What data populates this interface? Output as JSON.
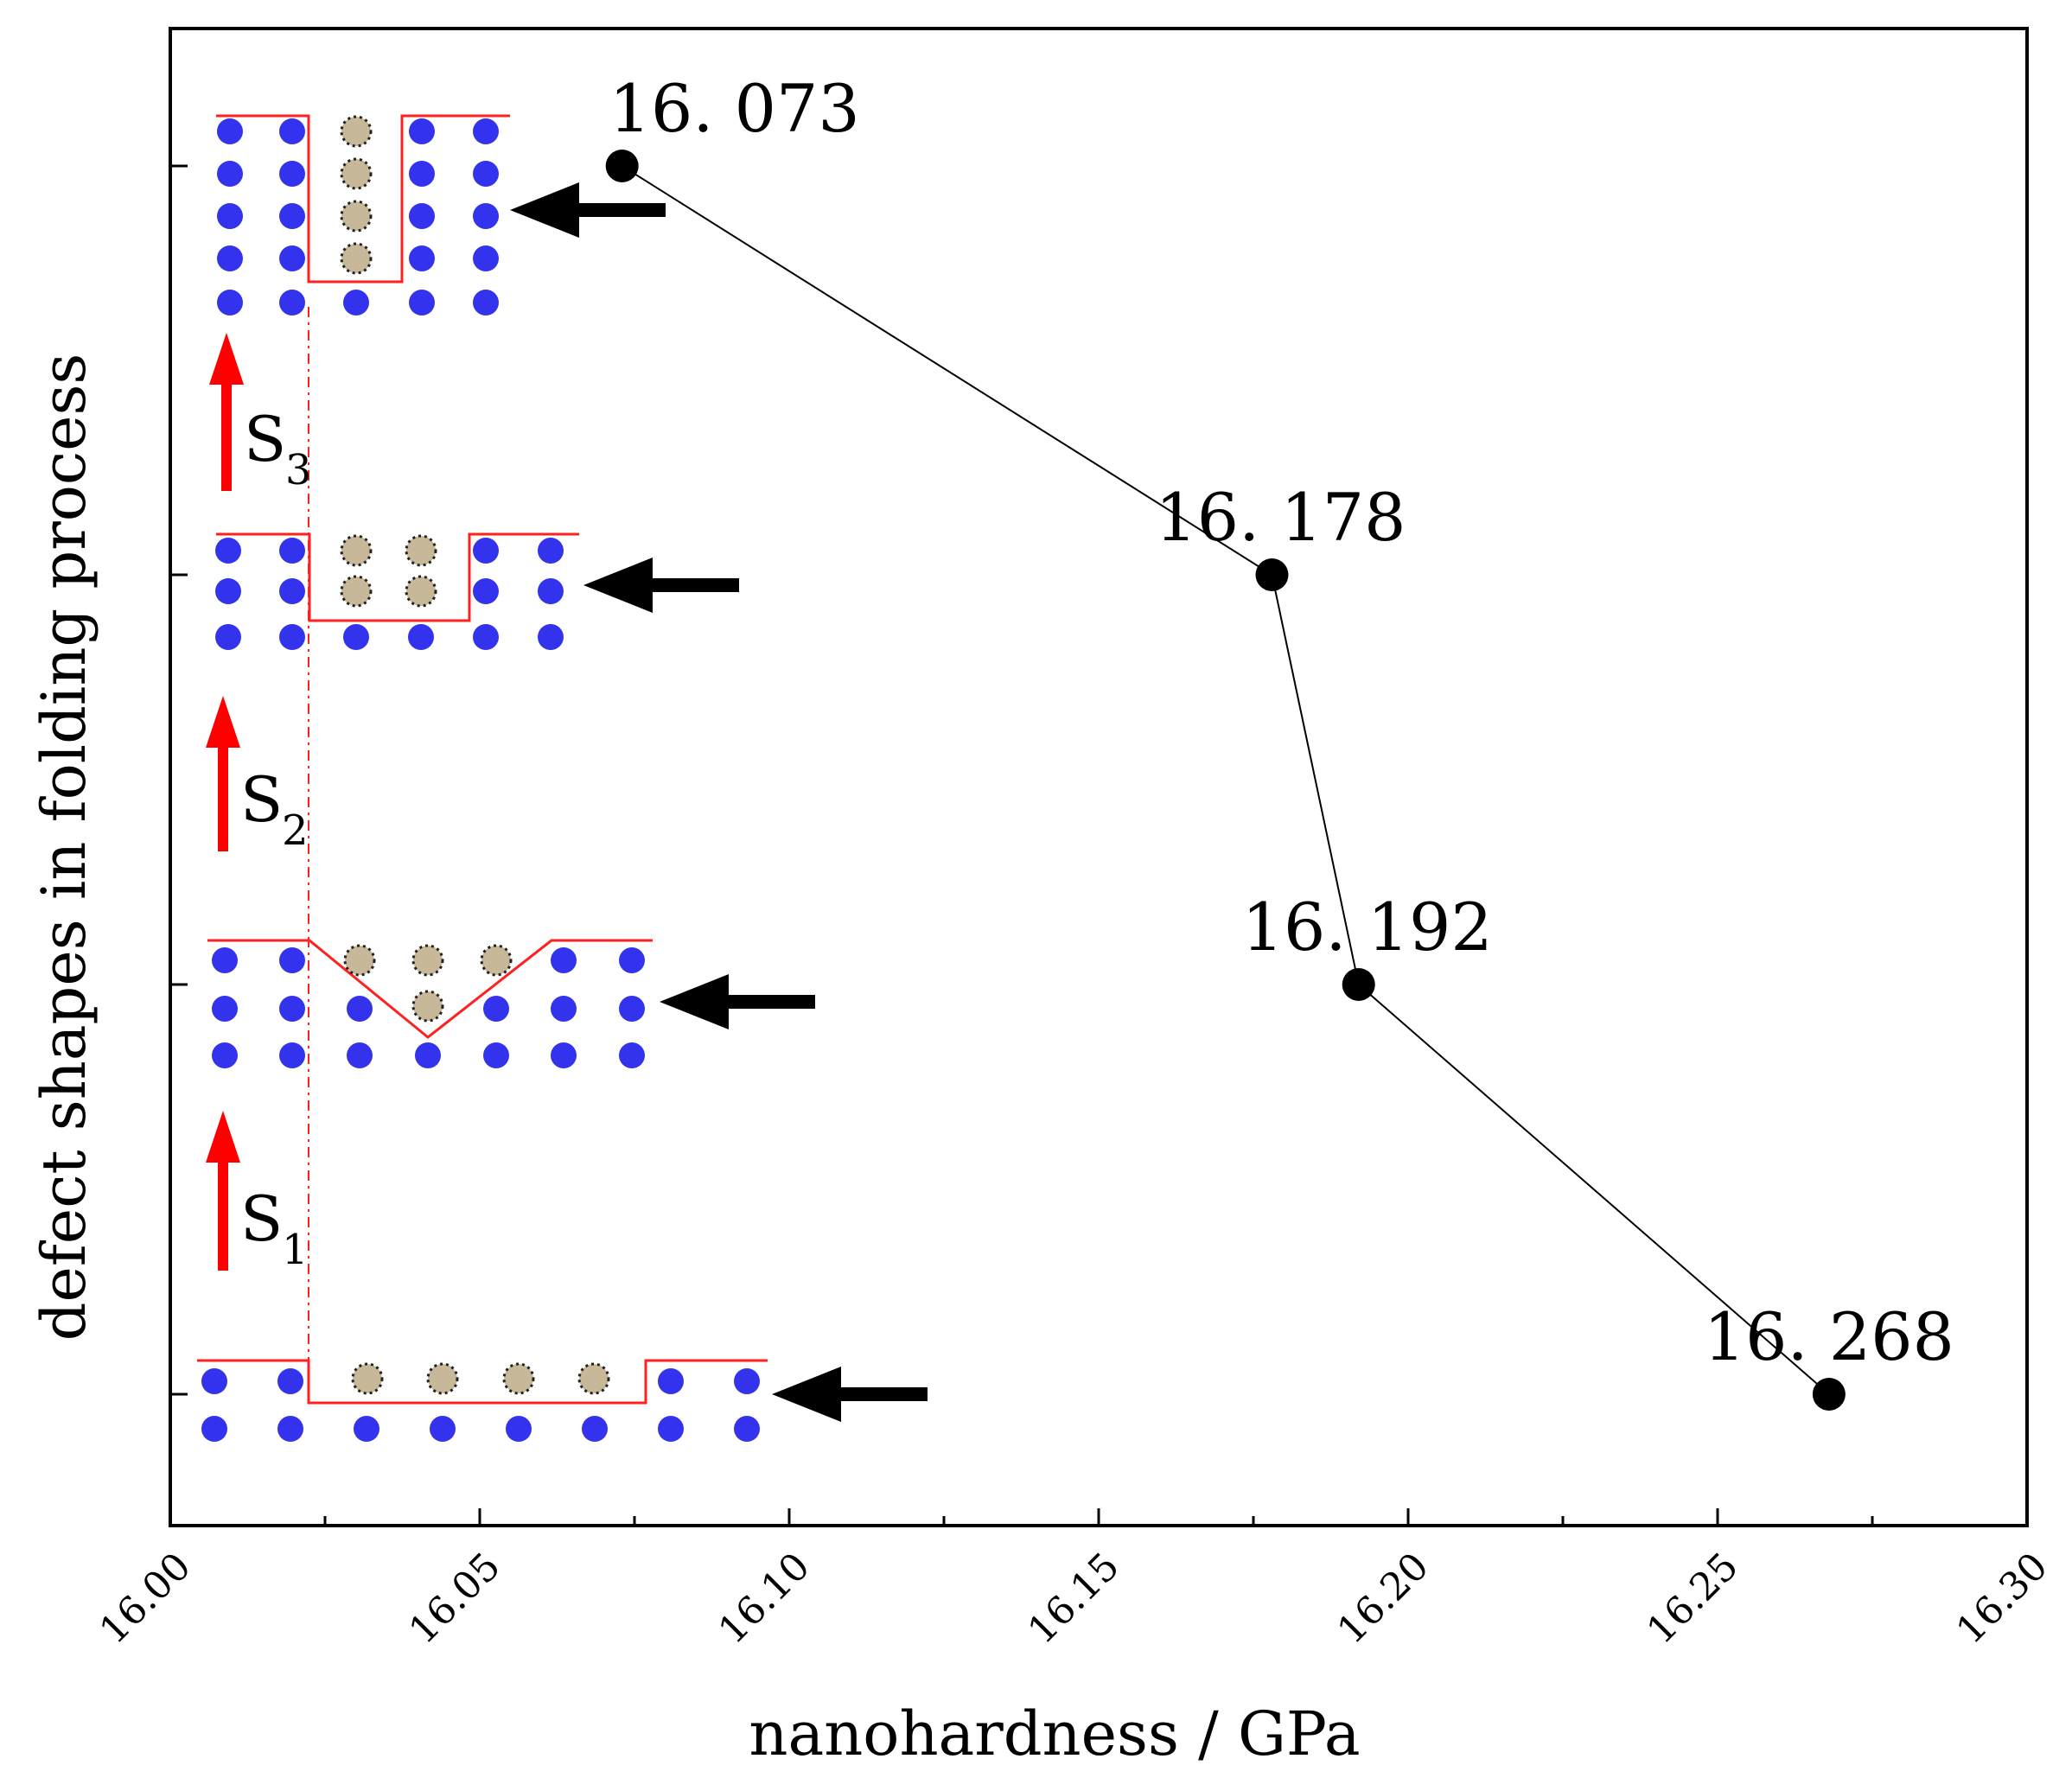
{
  "chart_data": {
    "type": "line",
    "title": "",
    "xlabel": "nanohardness / GPa",
    "ylabel": "defect shapes in folding process",
    "xlim": [
      16.0,
      16.3
    ],
    "x_ticks": [
      "16.00",
      "16.05",
      "16.10",
      "16.15",
      "16.20",
      "16.25",
      "16.30"
    ],
    "series": [
      {
        "name": "nanohardness",
        "x": [
          16.073,
          16.178,
          16.192,
          16.268
        ],
        "levels": [
          4,
          3,
          2,
          1
        ],
        "labels": [
          "16. 073",
          "16. 178",
          "16. 192",
          "16. 268"
        ]
      }
    ],
    "defect_shapes": [
      {
        "level": 1,
        "name": "flat-wide-defect"
      },
      {
        "level": 2,
        "name": "v-shape-defect"
      },
      {
        "level": 3,
        "name": "shallow-slot-defect"
      },
      {
        "level": 4,
        "name": "deep-slot-defect"
      }
    ],
    "steps": [
      {
        "letter": "S",
        "sub": "1"
      },
      {
        "letter": "S",
        "sub": "2"
      },
      {
        "letter": "S",
        "sub": "3"
      }
    ],
    "colors": {
      "atom": "#3333ee",
      "defect_atom": "#c8b89a",
      "outline": "#ff2020",
      "step_arrow": "#ff0000",
      "pointer": "#000000",
      "line": "#000000"
    }
  }
}
